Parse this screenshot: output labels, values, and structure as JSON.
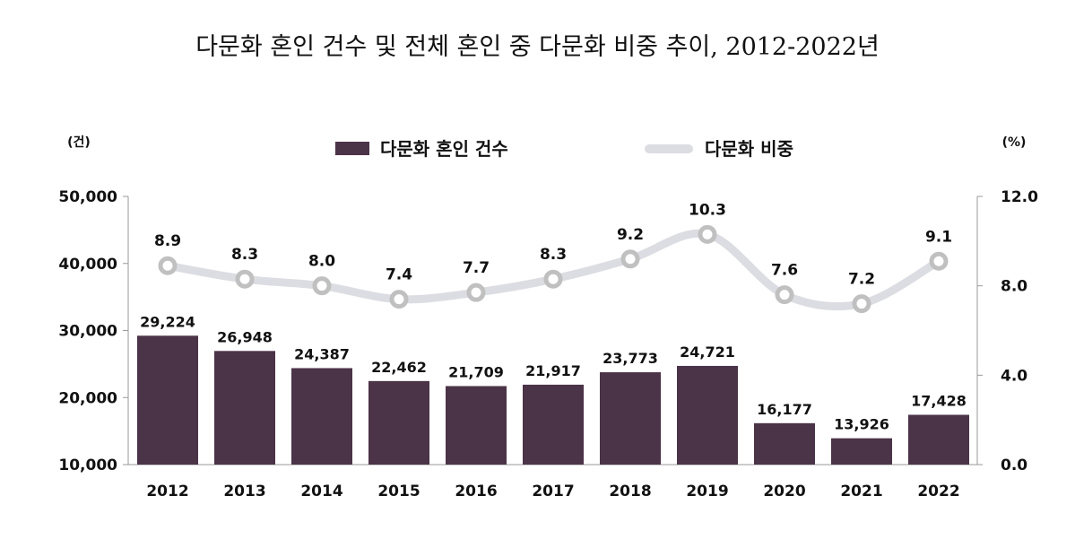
{
  "chart_data": {
    "type": "bar",
    "title": "다문화 혼인 건수 및 전체 혼인 중 다문화 비중 추이, 2012-2022년",
    "categories": [
      "2012",
      "2013",
      "2014",
      "2015",
      "2016",
      "2017",
      "2018",
      "2019",
      "2020",
      "2021",
      "2022"
    ],
    "series": [
      {
        "name": "다문화 혼인 건수",
        "type": "bar",
        "axis": "left",
        "values": [
          29224,
          26948,
          24387,
          22462,
          21709,
          21917,
          23773,
          24721,
          16177,
          13926,
          17428
        ],
        "labels": [
          "29,224",
          "26,948",
          "24,387",
          "22,462",
          "21,709",
          "21,917",
          "23,773",
          "24,721",
          "16,177",
          "13,926",
          "17,428"
        ],
        "color": "#4b3348"
      },
      {
        "name": "다문화 비중",
        "type": "line",
        "axis": "right",
        "smooth": true,
        "values": [
          8.9,
          8.3,
          8.0,
          7.4,
          7.7,
          8.3,
          9.2,
          10.3,
          7.6,
          7.2,
          9.1
        ],
        "labels": [
          "8.9",
          "8.3",
          "8.0",
          "7.4",
          "7.7",
          "8.3",
          "9.2",
          "10.3",
          "7.6",
          "7.2",
          "9.1"
        ],
        "color": "#dcdde2",
        "marker_color": "#c0c0c0"
      }
    ],
    "left_axis": {
      "unit": "(건)",
      "range": [
        10000,
        50000
      ],
      "ticks": [
        "10,000",
        "20,000",
        "30,000",
        "40,000",
        "50,000"
      ]
    },
    "right_axis": {
      "unit": "(%)",
      "range": [
        0,
        12
      ],
      "ticks": [
        "0.0",
        "4.0",
        "8.0",
        "12.0"
      ]
    },
    "legend": {
      "placement": "top-center"
    },
    "grid": false
  }
}
